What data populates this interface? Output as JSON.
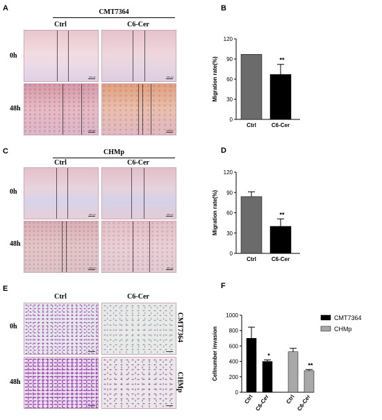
{
  "panels": {
    "A": {
      "letter": "A",
      "group": "CMT7364",
      "col1": "Ctrl",
      "col2": "C6-Cer",
      "row1": "0h",
      "row2": "48h"
    },
    "B": {
      "letter": "B"
    },
    "C": {
      "letter": "C",
      "group": "CHMp",
      "col1": "Ctrl",
      "col2": "C6-Cer",
      "row1": "0h",
      "row2": "48h"
    },
    "D": {
      "letter": "D"
    },
    "E": {
      "letter": "E",
      "col1": "Ctrl",
      "col2": "C6-Cer",
      "row1": "0h",
      "row2": "48h",
      "side1": "CMT7364",
      "side2": "CHMp"
    },
    "F": {
      "letter": "F"
    }
  },
  "scale_bar_label": "200 μm",
  "chart_data": [
    {
      "id": "B",
      "type": "bar",
      "categories": [
        "Ctrl",
        "C6-Cer"
      ],
      "values": [
        97,
        67
      ],
      "errors": [
        0,
        15
      ],
      "significance": [
        "",
        "**"
      ],
      "colors": [
        "#6b6b6b",
        "#000000"
      ],
      "ylabel": "Migration rate(%)",
      "ylim": [
        0,
        120
      ],
      "yticks": [
        0,
        30,
        60,
        90,
        120
      ]
    },
    {
      "id": "D",
      "type": "bar",
      "categories": [
        "Ctrl",
        "C6-Cer"
      ],
      "values": [
        84,
        40
      ],
      "errors": [
        7,
        11
      ],
      "significance": [
        "",
        "**"
      ],
      "colors": [
        "#6b6b6b",
        "#000000"
      ],
      "ylabel": "Migration rate(%)",
      "ylim": [
        0,
        120
      ],
      "yticks": [
        0,
        30,
        60,
        90,
        120
      ]
    },
    {
      "id": "F",
      "type": "bar",
      "categories": [
        "Ctrl",
        "C6-Cer",
        "Ctrl",
        "C6-Cer"
      ],
      "values": [
        700,
        400,
        525,
        280
      ],
      "errors": [
        145,
        20,
        45,
        15
      ],
      "significance": [
        "",
        "*",
        "",
        "**"
      ],
      "colors": [
        "#000000",
        "#000000",
        "#a8a8a8",
        "#a8a8a8"
      ],
      "series": [
        {
          "name": "CMT7364",
          "color": "#000000"
        },
        {
          "name": "CHMp",
          "color": "#a8a8a8"
        }
      ],
      "ylabel": "Cellnumber invasion",
      "ylim": [
        0,
        1000
      ],
      "yticks": [
        0,
        200,
        400,
        600,
        800,
        1000
      ]
    }
  ]
}
